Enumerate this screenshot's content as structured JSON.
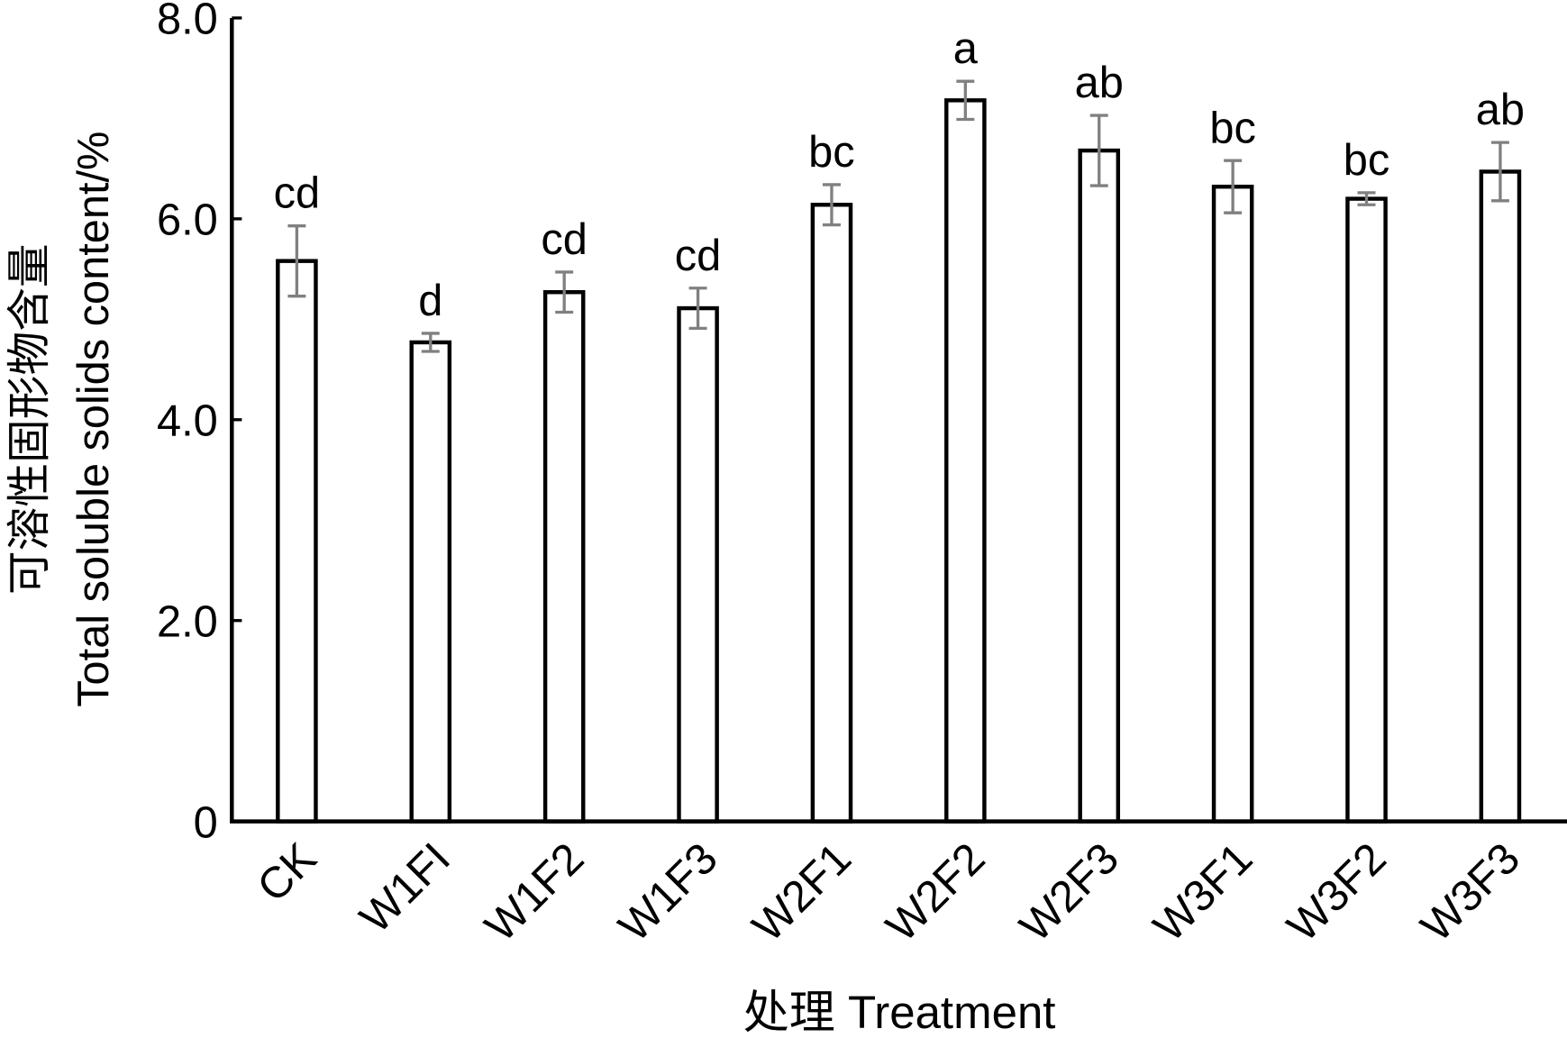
{
  "chart_data": {
    "type": "bar",
    "xlabel": "处理 Treatment",
    "ylabel_cn": "可溶性固形物含量",
    "ylabel_en": "Total soluble solids content/%",
    "ylim": [
      0,
      8
    ],
    "yticks": [
      0,
      2,
      4,
      6,
      8
    ],
    "ytick_labels": [
      "0",
      "2.0",
      "4.0",
      "6.0",
      "8.0"
    ],
    "grid": false,
    "categories": [
      "CK",
      "W1FI",
      "W1F2",
      "W1F3",
      "W2F1",
      "W2F2",
      "W2F3",
      "W3F1",
      "W3F2",
      "W3F3"
    ],
    "values": [
      5.58,
      4.77,
      5.27,
      5.11,
      6.14,
      7.18,
      6.68,
      6.32,
      6.2,
      6.47
    ],
    "errors": [
      0.35,
      0.09,
      0.2,
      0.2,
      0.2,
      0.19,
      0.35,
      0.26,
      0.06,
      0.29
    ],
    "significance_letters": [
      "cd",
      "d",
      "cd",
      "cd",
      "bc",
      "a",
      "ab",
      "bc",
      "bc",
      "ab"
    ],
    "colors": {
      "bar_fill": "#ffffff",
      "bar_stroke": "#000000",
      "error_bar": "#808080"
    }
  }
}
